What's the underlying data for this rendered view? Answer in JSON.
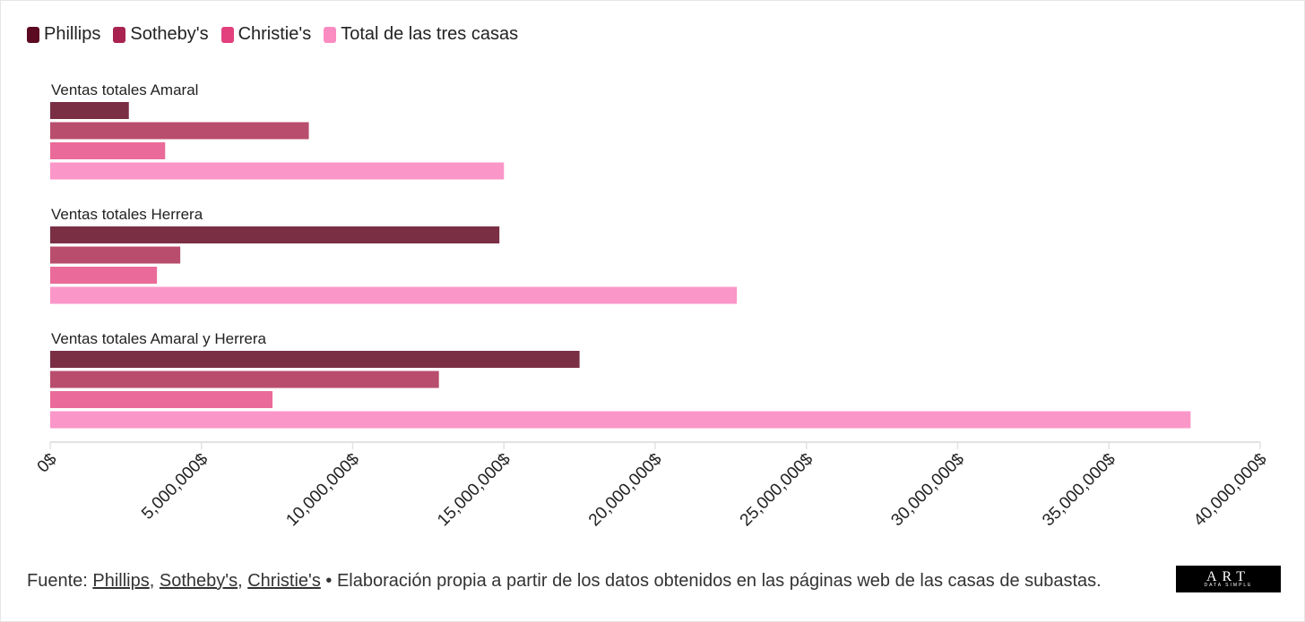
{
  "colors": {
    "phillips": "#7a2f45",
    "sothebys": "#b84d6d",
    "christies": "#ea6b99",
    "total": "#fb96c8",
    "legend_phillips": "#5c0a22",
    "legend_sothebys": "#a8234f",
    "legend_christies": "#e3407e",
    "legend_total": "#fb8cc2"
  },
  "legend": [
    {
      "label": "Phillips",
      "color_key": "legend_phillips"
    },
    {
      "label": "Sotheby's",
      "color_key": "legend_sothebys"
    },
    {
      "label": "Christie's",
      "color_key": "legend_christies"
    },
    {
      "label": "Total de las tres casas",
      "color_key": "legend_total"
    }
  ],
  "chart_data": {
    "type": "bar",
    "orientation": "horizontal",
    "categories": [
      "Ventas totales Amaral",
      "Ventas totales Herrera",
      "Ventas totales Amaral y Herrera"
    ],
    "series": [
      {
        "name": "Phillips",
        "values": [
          2600000,
          14850000,
          17500000
        ]
      },
      {
        "name": "Sotheby's",
        "values": [
          8550000,
          4300000,
          12850000
        ]
      },
      {
        "name": "Christie's",
        "values": [
          3800000,
          3530000,
          7350000
        ]
      },
      {
        "name": "Total de las tres casas",
        "values": [
          15000000,
          22700000,
          37700000
        ]
      }
    ],
    "xlim": [
      0,
      40000000
    ],
    "ticks": [
      0,
      5000000,
      10000000,
      15000000,
      20000000,
      25000000,
      30000000,
      35000000,
      40000000
    ],
    "tick_labels": [
      "0$",
      "5,000,000$",
      "10,000,000$",
      "15,000,000$",
      "20,000,000$",
      "25,000,000$",
      "30,000,000$",
      "35,000,000$",
      "40,000,000$"
    ],
    "legend_position": "top-left",
    "grid": false
  },
  "footer": {
    "prefix": "Fuente: ",
    "links": [
      "Phillips",
      "Sotheby's",
      "Christie's"
    ],
    "separator": ", ",
    "suffix": " • Elaboración propia a partir de los datos obtenidos en las páginas web de las casas de subastas."
  },
  "logo": {
    "main": "ART",
    "sub": "DATA SIMPLE"
  }
}
